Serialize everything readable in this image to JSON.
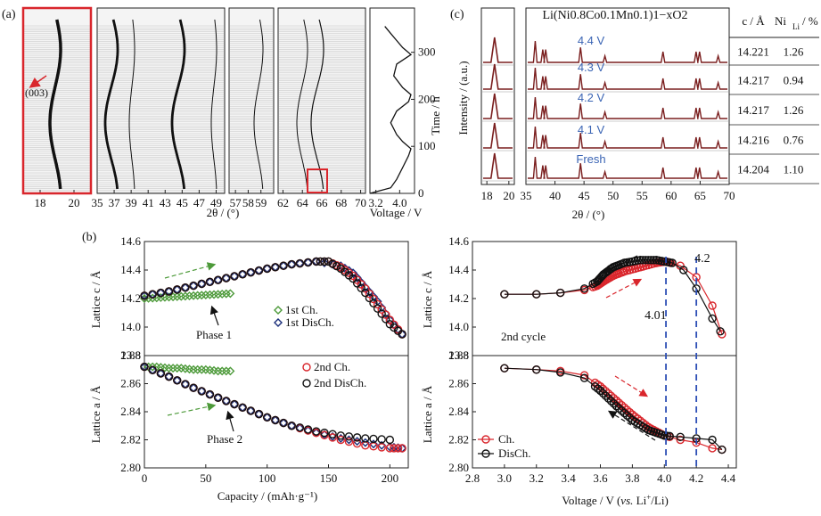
{
  "panel_labels": {
    "a": "(a)",
    "b": "(b)",
    "c": "(c)"
  },
  "colors": {
    "red": "#d9262c",
    "green": "#4d9a3a",
    "navy": "#1a2e7a",
    "black": "#111111",
    "blue_text": "#3a64b4",
    "dashed_blue": "#2d4fb5",
    "dark_red": "#7a1e1e"
  },
  "chart_data": [
    {
      "id": "a",
      "type": "heatmap",
      "description_labels": {
        "annotation": "(003)"
      },
      "xlabel": "2θ / (°)",
      "subpanels": [
        {
          "xlim": [
            17,
            21
          ],
          "ticks": [
            18,
            20
          ]
        },
        {
          "xlim": [
            35,
            50
          ],
          "ticks": [
            35,
            37,
            39,
            41,
            43,
            45,
            47,
            49
          ]
        },
        {
          "xlim": [
            56.5,
            60
          ],
          "ticks": [
            57,
            58,
            59
          ]
        },
        {
          "xlim": [
            61.5,
            70.5
          ],
          "ticks": [
            62,
            64,
            66,
            68,
            70
          ]
        }
      ],
      "voltage_profile": {
        "xlabel": "Voltage / V",
        "ylabel": "Time / h",
        "xlim": [
          3.0,
          4.5
        ],
        "ylim": [
          0,
          360
        ],
        "x_ticks": [
          "3.2",
          "4.0"
        ],
        "y_ticks": [
          0,
          100,
          200,
          300
        ],
        "time_h": [
          0,
          12,
          30,
          55,
          80,
          95,
          110,
          125,
          150,
          175,
          195,
          210,
          225,
          250,
          275,
          295,
          310,
          325,
          340,
          355
        ],
        "voltage_v": [
          3.0,
          3.7,
          3.9,
          4.1,
          4.3,
          4.38,
          4.1,
          3.9,
          3.7,
          3.9,
          4.3,
          4.38,
          4.1,
          3.8,
          3.9,
          4.38,
          4.1,
          3.9,
          3.7,
          3.5
        ]
      }
    },
    {
      "id": "b1",
      "type": "scatter",
      "xlabel": "Capacity / (mAh·g⁻¹)",
      "x_ticks": [
        0,
        50,
        100,
        150,
        200
      ],
      "xlim": [
        0,
        215
      ],
      "top": {
        "ylabel": "Lattice c / Å",
        "ylim": [
          13.8,
          14.6
        ],
        "y_ticks": [
          "13.8",
          "14.0",
          "14.2",
          "14.4",
          "14.6"
        ],
        "annotation": "Phase 1",
        "series": [
          {
            "name": "1st Ch.",
            "marker": "diamond",
            "color": "green",
            "x": [
              0,
              10,
              20,
              30,
              40,
              50,
              60,
              70
            ],
            "y": [
              14.2,
              14.205,
              14.21,
              14.215,
              14.22,
              14.225,
              14.23,
              14.235
            ]
          },
          {
            "name": "1st DisCh.",
            "marker": "diamond",
            "color": "navy",
            "x": [
              0,
              20,
              40,
              60,
              80,
              100,
              120,
              140,
              160,
              170,
              180,
              190,
              200,
              210
            ],
            "y": [
              14.22,
              14.25,
              14.29,
              14.33,
              14.37,
              14.41,
              14.44,
              14.46,
              14.43,
              14.38,
              14.28,
              14.18,
              14.05,
              13.95
            ]
          },
          {
            "name": "2nd Ch.",
            "marker": "circle",
            "color": "red",
            "x": [
              0,
              20,
              40,
              60,
              80,
              100,
              120,
              140,
              150,
              160,
              170,
              180,
              190,
              200,
              210
            ],
            "y": [
              14.22,
              14.25,
              14.29,
              14.33,
              14.37,
              14.41,
              14.44,
              14.46,
              14.46,
              14.42,
              14.36,
              14.27,
              14.16,
              14.05,
              13.95
            ]
          },
          {
            "name": "2nd DisCh.",
            "marker": "circle",
            "color": "black",
            "x": [
              0,
              20,
              40,
              60,
              80,
              100,
              120,
              140,
              150,
              160,
              170,
              180,
              190,
              200,
              210
            ],
            "y": [
              14.22,
              14.25,
              14.29,
              14.33,
              14.37,
              14.41,
              14.44,
              14.46,
              14.46,
              14.41,
              14.34,
              14.24,
              14.13,
              14.02,
              13.95
            ]
          }
        ]
      },
      "bottom": {
        "ylabel": "Lattice a / Å",
        "ylim": [
          2.8,
          2.88
        ],
        "y_ticks": [
          "2.80",
          "2.82",
          "2.84",
          "2.86",
          "2.88"
        ],
        "annotation": "Phase 2",
        "series": [
          {
            "name": "1st Ch.",
            "marker": "diamond",
            "color": "green",
            "x": [
              0,
              10,
              20,
              30,
              40,
              50,
              60,
              70
            ],
            "y": [
              2.872,
              2.872,
              2.871,
              2.871,
              2.87,
              2.87,
              2.869,
              2.869
            ]
          },
          {
            "name": "1st DisCh.",
            "marker": "diamond",
            "color": "navy",
            "x": [
              0,
              20,
              40,
              60,
              80,
              100,
              120,
              140,
              160,
              180,
              200,
              210
            ],
            "y": [
              2.872,
              2.865,
              2.857,
              2.85,
              2.843,
              2.836,
              2.83,
              2.825,
              2.821,
              2.818,
              2.815,
              2.814
            ]
          },
          {
            "name": "2nd Ch.",
            "marker": "circle",
            "color": "red",
            "x": [
              0,
              20,
              40,
              60,
              80,
              100,
              120,
              140,
              160,
              180,
              200,
              210
            ],
            "y": [
              2.872,
              2.865,
              2.857,
              2.85,
              2.843,
              2.836,
              2.83,
              2.825,
              2.82,
              2.816,
              2.814,
              2.814
            ]
          },
          {
            "name": "2nd DisCh.",
            "marker": "circle",
            "color": "black",
            "x": [
              0,
              20,
              40,
              60,
              80,
              100,
              120,
              140,
              160,
              180,
              200
            ],
            "y": [
              2.872,
              2.865,
              2.857,
              2.85,
              2.843,
              2.836,
              2.83,
              2.826,
              2.823,
              2.821,
              2.82
            ]
          }
        ]
      }
    },
    {
      "id": "b2",
      "type": "line",
      "xlabel": "Voltage / V (vs. Li⁺/Li)",
      "x_ticks": [
        "2.8",
        "3.0",
        "3.2",
        "3.4",
        "3.6",
        "3.8",
        "4.0",
        "4.2",
        "4.4"
      ],
      "xlim": [
        2.8,
        4.45
      ],
      "vlines": [
        4.01,
        4.2
      ],
      "vline_labels": [
        "4.01",
        "4.2"
      ],
      "top": {
        "ylabel": "Lattice c / Å",
        "ylim": [
          13.8,
          14.6
        ],
        "y_ticks": [
          "13.8",
          "14.0",
          "14.2",
          "14.4",
          "14.6"
        ],
        "annotation": "2nd cycle",
        "series": [
          {
            "name": "Ch.",
            "color": "red",
            "x": [
              3.0,
              3.2,
              3.35,
              3.5,
              3.58,
              3.62,
              3.68,
              3.75,
              3.85,
              3.95,
              4.01,
              4.1,
              4.2,
              4.3,
              4.36
            ],
            "y": [
              14.23,
              14.23,
              14.24,
              14.26,
              14.29,
              14.32,
              14.36,
              14.39,
              14.42,
              14.45,
              14.46,
              14.43,
              14.35,
              14.15,
              13.95
            ]
          },
          {
            "name": "DisCh.",
            "color": "black",
            "x": [
              3.0,
              3.2,
              3.35,
              3.5,
              3.58,
              3.62,
              3.68,
              3.75,
              3.85,
              3.95,
              4.05,
              4.12,
              4.2,
              4.3,
              4.35
            ],
            "y": [
              14.23,
              14.23,
              14.24,
              14.27,
              14.32,
              14.37,
              14.42,
              14.45,
              14.47,
              14.47,
              14.45,
              14.4,
              14.27,
              14.06,
              13.97
            ]
          }
        ]
      },
      "bottom": {
        "ylabel": "Lattice a / Å",
        "ylim": [
          2.8,
          2.88
        ],
        "y_ticks": [
          "2.80",
          "2.82",
          "2.84",
          "2.86",
          "2.88"
        ],
        "legend": [
          "Ch.",
          "DisCh."
        ],
        "series": [
          {
            "name": "Ch.",
            "color": "red",
            "x": [
              3.0,
              3.2,
              3.35,
              3.5,
              3.6,
              3.7,
              3.8,
              3.9,
              4.0,
              4.1,
              4.2,
              4.3,
              4.36
            ],
            "y": [
              2.871,
              2.87,
              2.869,
              2.866,
              2.858,
              2.848,
              2.838,
              2.829,
              2.823,
              2.82,
              2.818,
              2.814,
              2.813
            ]
          },
          {
            "name": "DisCh.",
            "color": "black",
            "x": [
              3.0,
              3.2,
              3.35,
              3.5,
              3.6,
              3.7,
              3.8,
              3.9,
              4.0,
              4.1,
              4.2,
              4.3,
              4.36
            ],
            "y": [
              2.871,
              2.87,
              2.868,
              2.864,
              2.855,
              2.844,
              2.834,
              2.827,
              2.823,
              2.822,
              2.821,
              2.82,
              2.813
            ]
          }
        ]
      }
    },
    {
      "id": "c",
      "type": "line",
      "title": "Li(Ni0.8Co0.1Mn0.1)1−xO2",
      "ylabel": "Intensity / (a.u.)",
      "xlabel": "2θ / (°)",
      "subpanels": [
        {
          "xlim": [
            17.5,
            20.5
          ],
          "ticks": [
            "18",
            "20"
          ]
        },
        {
          "xlim": [
            35,
            70
          ],
          "ticks": [
            "35",
            "40",
            "45",
            "50",
            "55",
            "60",
            "65",
            "70"
          ]
        }
      ],
      "peak_positions": [
        18.7,
        36.6,
        37.9,
        38.4,
        44.4,
        48.6,
        58.6,
        64.3,
        64.9,
        68.1
      ],
      "patterns": [
        {
          "label": "4.4 V"
        },
        {
          "label": "4.3 V"
        },
        {
          "label": "4.2 V"
        },
        {
          "label": "4.1 V"
        },
        {
          "label": "Fresh"
        }
      ],
      "table": {
        "columns": [
          "c / Å",
          "Ni",
          "Li",
          "/ %"
        ],
        "rows": [
          [
            "14.221",
            "1.26"
          ],
          [
            "14.217",
            "0.94"
          ],
          [
            "14.217",
            "1.26"
          ],
          [
            "14.216",
            "0.76"
          ],
          [
            "14.204",
            "1.10"
          ]
        ]
      }
    }
  ]
}
